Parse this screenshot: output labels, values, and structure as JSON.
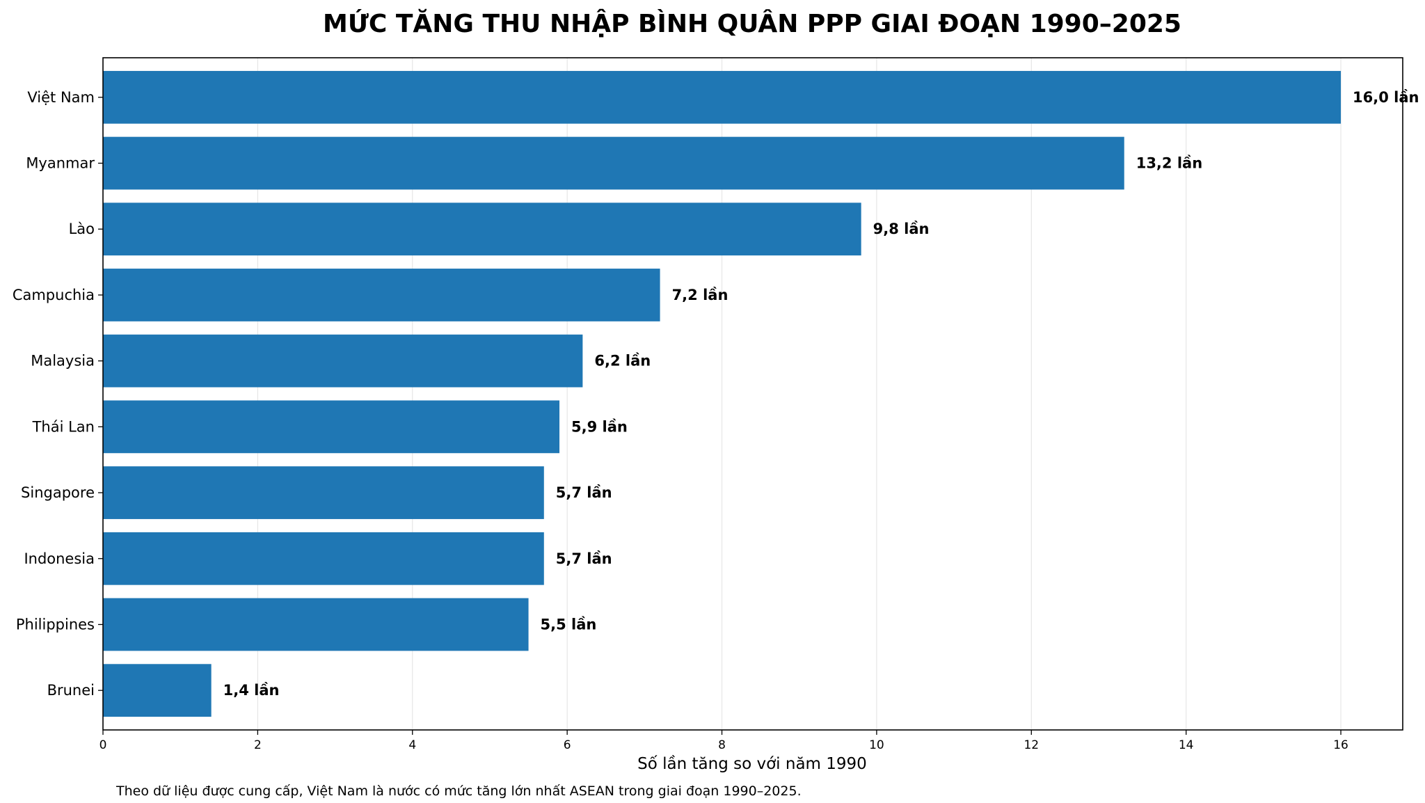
{
  "chart_data": {
    "type": "bar",
    "orientation": "horizontal",
    "title": "MỨC TĂNG THU NHẬP BÌNH QUÂN PPP GIAI ĐOẠN 1990–2025",
    "xlabel": "Số lần tăng so với năm 1990",
    "ylabel": "",
    "categories": [
      "Việt Nam",
      "Myanmar",
      "Lào",
      "Campuchia",
      "Malaysia",
      "Thái Lan",
      "Singapore",
      "Indonesia",
      "Philippines",
      "Brunei"
    ],
    "values": [
      16.0,
      13.2,
      9.8,
      7.2,
      6.2,
      5.9,
      5.7,
      5.7,
      5.5,
      1.4
    ],
    "data_labels": [
      "16,0 lần",
      "13,2 lần",
      "9,8 lần",
      "7,2 lần",
      "6,2 lần",
      "5,9 lần",
      "5,7 lần",
      "5,7 lần",
      "5,5 lần",
      "1,4 lần"
    ],
    "xlim": [
      0,
      16.8
    ],
    "xticks": [
      0,
      2,
      4,
      6,
      8,
      10,
      12,
      14,
      16
    ],
    "grid": "vertical",
    "bar_color": "#1f77b4",
    "note": "Theo dữ liệu được cung cấp, Việt Nam là nước có mức tăng lớn nhất ASEAN trong giai đoạn 1990–2025."
  }
}
